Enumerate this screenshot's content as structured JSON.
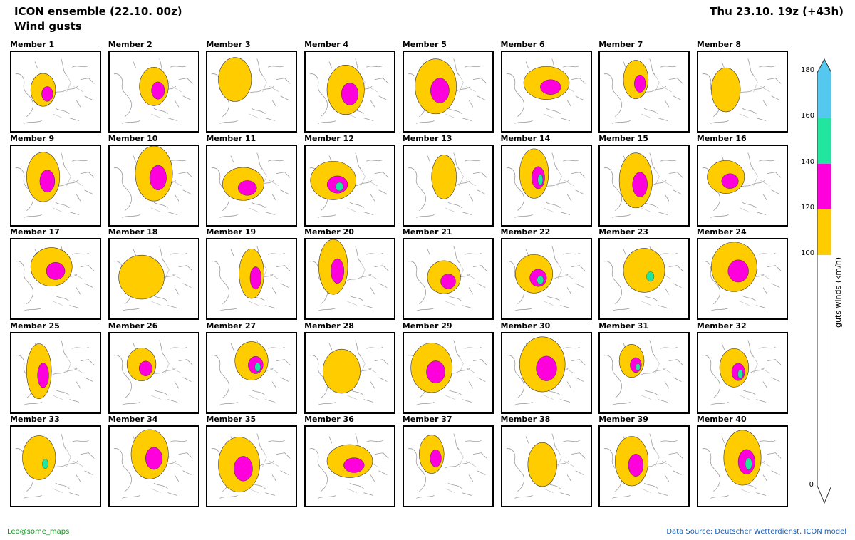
{
  "header": {
    "title_line1": "ICON ensemble (22.10. 00z)",
    "title_line2": "Wind gusts",
    "valid_time": "Thu 23.10. 19z (+43h)"
  },
  "members": [
    "Member 1",
    "Member 2",
    "Member 3",
    "Member 4",
    "Member 5",
    "Member 6",
    "Member 7",
    "Member 8",
    "Member 9",
    "Member 10",
    "Member 11",
    "Member 12",
    "Member 13",
    "Member 14",
    "Member 15",
    "Member 16",
    "Member 17",
    "Member 18",
    "Member 19",
    "Member 20",
    "Member 21",
    "Member 22",
    "Member 23",
    "Member 24",
    "Member 25",
    "Member 26",
    "Member 27",
    "Member 28",
    "Member 29",
    "Member 30",
    "Member 31",
    "Member 32",
    "Member 33",
    "Member 34",
    "Member 35",
    "Member 36",
    "Member 37",
    "Member 38",
    "Member 39",
    "Member 40"
  ],
  "colorbar": {
    "ticks": [
      "180",
      "160",
      "140",
      "120",
      "100",
      "0"
    ],
    "label": "guts winds (km/h)",
    "colors": {
      "c100_120": "#ffcc00",
      "c120_140": "#ff00dd",
      "c140_160": "#22e6a0",
      "c160_180": "#55c8f0",
      "below": "#ffffff"
    }
  },
  "footer": {
    "credit": "Leo@some_maps",
    "source": "Data Source: Deutscher Wetterdienst, ICON model"
  }
}
